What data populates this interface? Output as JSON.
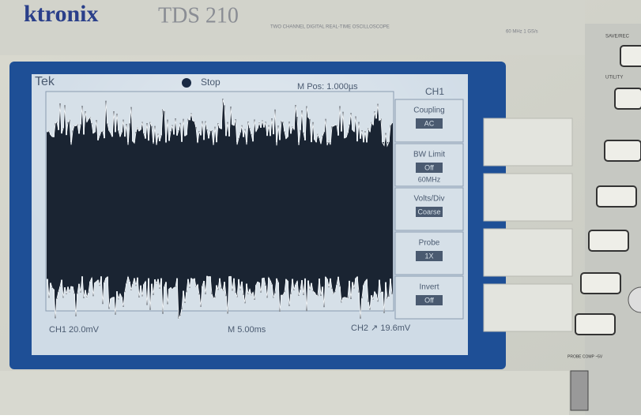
{
  "brand": "ktronix",
  "model": "TDS 210",
  "model_subtitle": "TWO CHANNEL DIGITAL REAL-TIME OSCILLOSCOPE",
  "spec": "60 MHz 1 GS/s",
  "screen": {
    "logo": "Tek",
    "status": "Stop",
    "trigger_position": "M Pos: 1.000µs",
    "channel": "CH1",
    "menu": [
      {
        "label": "Coupling",
        "value": "AC"
      },
      {
        "label": "BW Limit",
        "value": "Off",
        "extra": "60MHz"
      },
      {
        "label": "Volts/Div",
        "value": "Coarse"
      },
      {
        "label": "Probe",
        "value": "1X"
      },
      {
        "label": "Invert",
        "value": "Off"
      }
    ],
    "footer": {
      "ch1": "CH1  20.0mV",
      "time": "M 5.00ms",
      "ch2": "CH2 ↗ 19.6mV"
    }
  },
  "buttons": {
    "top1": "SAVE/REC",
    "top2": "UTILITY",
    "probe_comp": "PROBE COMP ~5V"
  }
}
